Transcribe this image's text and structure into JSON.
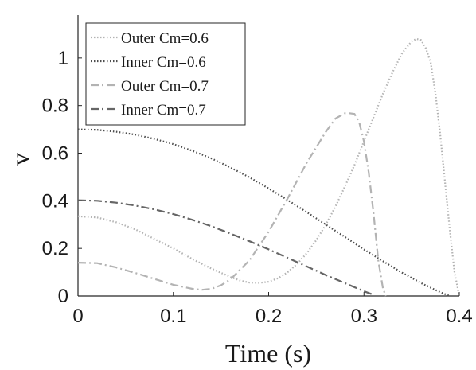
{
  "chart_data": {
    "type": "line",
    "title": "",
    "xlabel": "Time (s)",
    "ylabel": "v",
    "xlim": [
      0,
      0.4
    ],
    "ylim": [
      0,
      1.18
    ],
    "xticks": [
      0,
      0.1,
      0.2,
      0.3,
      0.4
    ],
    "xtick_labels": [
      "0",
      "0.1",
      "0.2",
      "0.3",
      "0.4"
    ],
    "yticks": [
      0,
      0.2,
      0.4,
      0.6,
      0.8,
      1
    ],
    "ytick_labels": [
      "0",
      "0.2",
      "0.4",
      "0.6",
      "0.8",
      "1"
    ],
    "grid": false,
    "legend_position": "top-left",
    "series": [
      {
        "name": "Outer Cm=0.6",
        "color": "#b3b3b3",
        "dash": "dotted",
        "x": [
          0,
          0.02,
          0.04,
          0.06,
          0.08,
          0.1,
          0.12,
          0.14,
          0.16,
          0.17,
          0.18,
          0.19,
          0.2,
          0.21,
          0.22,
          0.23,
          0.24,
          0.25,
          0.26,
          0.27,
          0.28,
          0.29,
          0.3,
          0.31,
          0.32,
          0.33,
          0.34,
          0.35,
          0.355,
          0.36,
          0.365,
          0.37,
          0.375,
          0.38,
          0.385,
          0.39,
          0.395,
          0.4
        ],
        "y": [
          0.335,
          0.33,
          0.31,
          0.28,
          0.24,
          0.2,
          0.155,
          0.115,
          0.08,
          0.065,
          0.056,
          0.055,
          0.06,
          0.075,
          0.1,
          0.135,
          0.18,
          0.235,
          0.3,
          0.375,
          0.46,
          0.55,
          0.65,
          0.75,
          0.85,
          0.94,
          1.02,
          1.07,
          1.08,
          1.075,
          1.04,
          0.98,
          0.85,
          0.68,
          0.48,
          0.28,
          0.1,
          0
        ]
      },
      {
        "name": "Inner Cm=0.6",
        "color": "#4d4d4d",
        "dash": "dotted",
        "x": [
          0,
          0.02,
          0.04,
          0.06,
          0.08,
          0.1,
          0.12,
          0.14,
          0.16,
          0.18,
          0.2,
          0.22,
          0.24,
          0.26,
          0.28,
          0.3,
          0.32,
          0.34,
          0.36,
          0.38,
          0.39
        ],
        "y": [
          0.7,
          0.698,
          0.69,
          0.678,
          0.66,
          0.638,
          0.61,
          0.578,
          0.54,
          0.498,
          0.452,
          0.403,
          0.352,
          0.3,
          0.248,
          0.196,
          0.146,
          0.098,
          0.054,
          0.016,
          0
        ]
      },
      {
        "name": "Outer Cm=0.7",
        "color": "#b3b3b3",
        "dash": "dashdot",
        "x": [
          0,
          0.02,
          0.04,
          0.06,
          0.08,
          0.1,
          0.12,
          0.13,
          0.14,
          0.15,
          0.16,
          0.18,
          0.2,
          0.22,
          0.24,
          0.26,
          0.27,
          0.28,
          0.285,
          0.29,
          0.295,
          0.3,
          0.305,
          0.31,
          0.315,
          0.32,
          0.323
        ],
        "y": [
          0.14,
          0.138,
          0.12,
          0.097,
          0.072,
          0.047,
          0.03,
          0.026,
          0.03,
          0.045,
          0.07,
          0.15,
          0.27,
          0.41,
          0.56,
          0.69,
          0.745,
          0.768,
          0.768,
          0.765,
          0.73,
          0.65,
          0.52,
          0.35,
          0.15,
          0.03,
          0
        ]
      },
      {
        "name": "Inner Cm=0.7",
        "color": "#666666",
        "dash": "dashdot",
        "x": [
          0,
          0.02,
          0.04,
          0.06,
          0.08,
          0.1,
          0.12,
          0.14,
          0.16,
          0.18,
          0.2,
          0.22,
          0.24,
          0.26,
          0.28,
          0.3,
          0.31
        ],
        "y": [
          0.402,
          0.4,
          0.392,
          0.38,
          0.364,
          0.344,
          0.32,
          0.293,
          0.262,
          0.23,
          0.196,
          0.16,
          0.124,
          0.088,
          0.054,
          0.02,
          0.005
        ]
      }
    ]
  }
}
